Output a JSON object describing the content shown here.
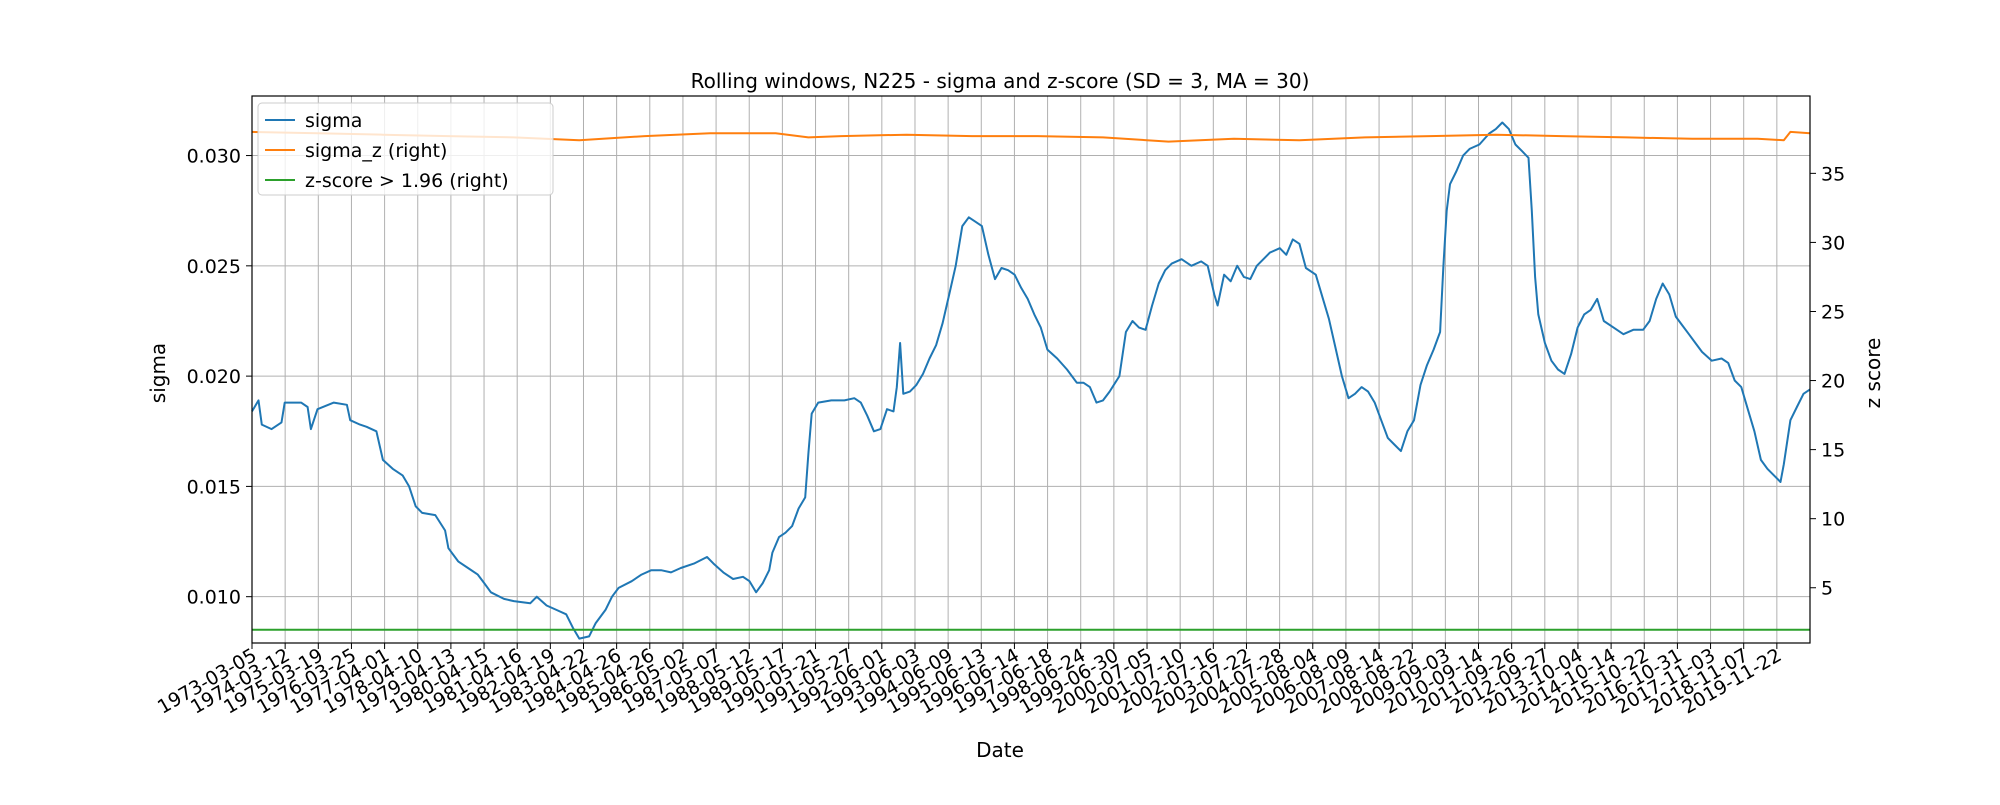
{
  "chart_data": {
    "type": "line",
    "title": "Rolling windows, N225 - sigma and z-score (SD = 3, MA = 30)",
    "xlabel": "Date",
    "ylabel": "sigma",
    "ylabel_right": "z score",
    "ylim": [
      0.0079,
      0.0327
    ],
    "ylim_right": [
      1.0,
      40.6
    ],
    "yticks": [
      "0.010",
      "0.015",
      "0.020",
      "0.025",
      "0.030"
    ],
    "yticks_right": [
      "5",
      "10",
      "15",
      "20",
      "25",
      "30",
      "35"
    ],
    "xticks": [
      "1973-03-05",
      "1974-03-12",
      "1975-03-19",
      "1976-03-25",
      "1977-04-01",
      "1978-04-10",
      "1979-04-13",
      "1980-04-15",
      "1981-04-16",
      "1982-04-19",
      "1983-04-22",
      "1984-04-26",
      "1985-04-26",
      "1986-05-02",
      "1987-05-07",
      "1988-05-12",
      "1989-05-17",
      "1990-05-21",
      "1991-05-27",
      "1992-06-01",
      "1993-06-03",
      "1994-06-09",
      "1995-06-13",
      "1996-06-14",
      "1997-06-18",
      "1998-06-24",
      "1999-06-30",
      "2000-07-05",
      "2001-07-10",
      "2002-07-16",
      "2003-07-22",
      "2004-07-28",
      "2005-08-04",
      "2006-08-09",
      "2007-08-14",
      "2008-08-22",
      "2009-09-03",
      "2010-09-14",
      "2011-09-26",
      "2012-09-27",
      "2013-10-04",
      "2014-10-14",
      "2015-10-22",
      "2016-10-31",
      "2017-11-03",
      "2018-11-07",
      "2019-11-22"
    ],
    "x_range": [
      1973.0,
      2020.6
    ],
    "grid": true,
    "legend_position": "top-left",
    "series": [
      {
        "name": "sigma",
        "axis": "left",
        "color": "#1f77b4",
        "points": [
          [
            1973.0,
            0.0184
          ],
          [
            1973.2,
            0.0189
          ],
          [
            1973.3,
            0.0178
          ],
          [
            1973.6,
            0.0176
          ],
          [
            1973.9,
            0.0179
          ],
          [
            1974.0,
            0.0188
          ],
          [
            1974.5,
            0.0188
          ],
          [
            1974.7,
            0.0186
          ],
          [
            1974.8,
            0.0176
          ],
          [
            1975.0,
            0.0185
          ],
          [
            1975.5,
            0.0188
          ],
          [
            1975.9,
            0.0187
          ],
          [
            1976.0,
            0.018
          ],
          [
            1976.3,
            0.0178
          ],
          [
            1976.5,
            0.0177
          ],
          [
            1976.8,
            0.0175
          ],
          [
            1977.0,
            0.0162
          ],
          [
            1977.3,
            0.0158
          ],
          [
            1977.6,
            0.0155
          ],
          [
            1977.8,
            0.015
          ],
          [
            1978.0,
            0.0141
          ],
          [
            1978.2,
            0.0138
          ],
          [
            1978.6,
            0.0137
          ],
          [
            1978.9,
            0.013
          ],
          [
            1979.0,
            0.0122
          ],
          [
            1979.3,
            0.0116
          ],
          [
            1979.6,
            0.0113
          ],
          [
            1979.9,
            0.011
          ],
          [
            1980.1,
            0.0106
          ],
          [
            1980.3,
            0.0102
          ],
          [
            1980.7,
            0.0099
          ],
          [
            1981.0,
            0.0098
          ],
          [
            1981.5,
            0.0097
          ],
          [
            1981.7,
            0.01
          ],
          [
            1982.0,
            0.0096
          ],
          [
            1982.3,
            0.0094
          ],
          [
            1982.6,
            0.0092
          ],
          [
            1982.8,
            0.0086
          ],
          [
            1983.0,
            0.0081
          ],
          [
            1983.3,
            0.0082
          ],
          [
            1983.5,
            0.0088
          ],
          [
            1983.8,
            0.0094
          ],
          [
            1984.0,
            0.01
          ],
          [
            1984.2,
            0.0104
          ],
          [
            1984.6,
            0.0107
          ],
          [
            1984.9,
            0.011
          ],
          [
            1985.2,
            0.0112
          ],
          [
            1985.5,
            0.0112
          ],
          [
            1985.8,
            0.0111
          ],
          [
            1986.1,
            0.0113
          ],
          [
            1986.5,
            0.0115
          ],
          [
            1986.9,
            0.0118
          ],
          [
            1987.1,
            0.0115
          ],
          [
            1987.4,
            0.0111
          ],
          [
            1987.7,
            0.0108
          ],
          [
            1988.0,
            0.0109
          ],
          [
            1988.2,
            0.0107
          ],
          [
            1988.4,
            0.0102
          ],
          [
            1988.6,
            0.0106
          ],
          [
            1988.8,
            0.0112
          ],
          [
            1988.9,
            0.012
          ],
          [
            1989.1,
            0.0127
          ],
          [
            1989.3,
            0.0129
          ],
          [
            1989.5,
            0.0132
          ],
          [
            1989.7,
            0.014
          ],
          [
            1989.9,
            0.0145
          ],
          [
            1990.0,
            0.0165
          ],
          [
            1990.1,
            0.0183
          ],
          [
            1990.3,
            0.0188
          ],
          [
            1990.7,
            0.0189
          ],
          [
            1991.1,
            0.0189
          ],
          [
            1991.4,
            0.019
          ],
          [
            1991.6,
            0.0188
          ],
          [
            1991.8,
            0.0182
          ],
          [
            1992.0,
            0.0175
          ],
          [
            1992.2,
            0.0176
          ],
          [
            1992.4,
            0.0185
          ],
          [
            1992.6,
            0.0184
          ],
          [
            1992.7,
            0.0195
          ],
          [
            1992.8,
            0.0215
          ],
          [
            1992.9,
            0.0192
          ],
          [
            1993.1,
            0.0193
          ],
          [
            1993.3,
            0.0196
          ],
          [
            1993.5,
            0.0201
          ],
          [
            1993.7,
            0.0208
          ],
          [
            1993.9,
            0.0214
          ],
          [
            1994.1,
            0.0224
          ],
          [
            1994.3,
            0.0237
          ],
          [
            1994.5,
            0.025
          ],
          [
            1994.7,
            0.0268
          ],
          [
            1994.9,
            0.0272
          ],
          [
            1995.1,
            0.027
          ],
          [
            1995.3,
            0.0268
          ],
          [
            1995.5,
            0.0255
          ],
          [
            1995.7,
            0.0244
          ],
          [
            1995.9,
            0.0249
          ],
          [
            1996.1,
            0.0248
          ],
          [
            1996.3,
            0.0246
          ],
          [
            1996.5,
            0.024
          ],
          [
            1996.7,
            0.0235
          ],
          [
            1996.9,
            0.0228
          ],
          [
            1997.1,
            0.0222
          ],
          [
            1997.3,
            0.0212
          ],
          [
            1997.6,
            0.0208
          ],
          [
            1997.9,
            0.0203
          ],
          [
            1998.2,
            0.0197
          ],
          [
            1998.4,
            0.0197
          ],
          [
            1998.6,
            0.0195
          ],
          [
            1998.8,
            0.0188
          ],
          [
            1999.0,
            0.0189
          ],
          [
            1999.2,
            0.0193
          ],
          [
            1999.5,
            0.02
          ],
          [
            1999.7,
            0.022
          ],
          [
            1999.9,
            0.0225
          ],
          [
            2000.1,
            0.0222
          ],
          [
            2000.3,
            0.0221
          ],
          [
            2000.5,
            0.0232
          ],
          [
            2000.7,
            0.0242
          ],
          [
            2000.9,
            0.0248
          ],
          [
            2001.1,
            0.0251
          ],
          [
            2001.4,
            0.0253
          ],
          [
            2001.7,
            0.025
          ],
          [
            2002.0,
            0.0252
          ],
          [
            2002.2,
            0.025
          ],
          [
            2002.4,
            0.0237
          ],
          [
            2002.5,
            0.0232
          ],
          [
            2002.7,
            0.0246
          ],
          [
            2002.9,
            0.0243
          ],
          [
            2003.1,
            0.025
          ],
          [
            2003.3,
            0.0245
          ],
          [
            2003.5,
            0.0244
          ],
          [
            2003.7,
            0.025
          ],
          [
            2003.9,
            0.0253
          ],
          [
            2004.1,
            0.0256
          ],
          [
            2004.4,
            0.0258
          ],
          [
            2004.6,
            0.0255
          ],
          [
            2004.8,
            0.0262
          ],
          [
            2005.0,
            0.026
          ],
          [
            2005.2,
            0.0249
          ],
          [
            2005.5,
            0.0246
          ],
          [
            2005.7,
            0.0236
          ],
          [
            2005.9,
            0.0226
          ],
          [
            2006.1,
            0.0213
          ],
          [
            2006.3,
            0.02
          ],
          [
            2006.5,
            0.019
          ],
          [
            2006.7,
            0.0192
          ],
          [
            2006.9,
            0.0195
          ],
          [
            2007.1,
            0.0193
          ],
          [
            2007.3,
            0.0188
          ],
          [
            2007.5,
            0.018
          ],
          [
            2007.7,
            0.0172
          ],
          [
            2007.9,
            0.0169
          ],
          [
            2008.1,
            0.0166
          ],
          [
            2008.3,
            0.0175
          ],
          [
            2008.5,
            0.018
          ],
          [
            2008.7,
            0.0196
          ],
          [
            2008.9,
            0.0205
          ],
          [
            2009.1,
            0.0212
          ],
          [
            2009.3,
            0.022
          ],
          [
            2009.4,
            0.025
          ],
          [
            2009.5,
            0.0275
          ],
          [
            2009.6,
            0.0287
          ],
          [
            2009.8,
            0.0293
          ],
          [
            2010.0,
            0.03
          ],
          [
            2010.2,
            0.0303
          ],
          [
            2010.5,
            0.0305
          ],
          [
            2010.8,
            0.031
          ],
          [
            2011.0,
            0.0312
          ],
          [
            2011.2,
            0.0315
          ],
          [
            2011.4,
            0.0312
          ],
          [
            2011.6,
            0.0305
          ],
          [
            2011.8,
            0.0302
          ],
          [
            2012.0,
            0.0299
          ],
          [
            2012.1,
            0.0275
          ],
          [
            2012.2,
            0.0245
          ],
          [
            2012.3,
            0.0228
          ],
          [
            2012.5,
            0.0215
          ],
          [
            2012.7,
            0.0207
          ],
          [
            2012.9,
            0.0203
          ],
          [
            2013.1,
            0.0201
          ],
          [
            2013.3,
            0.021
          ],
          [
            2013.5,
            0.0222
          ],
          [
            2013.7,
            0.0228
          ],
          [
            2013.9,
            0.023
          ],
          [
            2014.1,
            0.0235
          ],
          [
            2014.3,
            0.0225
          ],
          [
            2014.6,
            0.0222
          ],
          [
            2014.9,
            0.0219
          ],
          [
            2015.2,
            0.0221
          ],
          [
            2015.5,
            0.0221
          ],
          [
            2015.7,
            0.0225
          ],
          [
            2015.9,
            0.0235
          ],
          [
            2016.1,
            0.0242
          ],
          [
            2016.3,
            0.0237
          ],
          [
            2016.5,
            0.0227
          ],
          [
            2016.7,
            0.0223
          ],
          [
            2016.9,
            0.0219
          ],
          [
            2017.1,
            0.0215
          ],
          [
            2017.3,
            0.0211
          ],
          [
            2017.6,
            0.0207
          ],
          [
            2017.9,
            0.0208
          ],
          [
            2018.1,
            0.0206
          ],
          [
            2018.3,
            0.0198
          ],
          [
            2018.5,
            0.0195
          ],
          [
            2018.7,
            0.0185
          ],
          [
            2018.9,
            0.0175
          ],
          [
            2019.1,
            0.0162
          ],
          [
            2019.3,
            0.0158
          ],
          [
            2019.5,
            0.0155
          ],
          [
            2019.7,
            0.0152
          ],
          [
            2019.8,
            0.016
          ],
          [
            2020.0,
            0.018
          ],
          [
            2020.2,
            0.0186
          ],
          [
            2020.4,
            0.0192
          ],
          [
            2020.6,
            0.0194
          ]
        ]
      },
      {
        "name": "sigma_z (right)",
        "axis": "right",
        "color": "#ff7f0e",
        "points": [
          [
            1973.0,
            38.0
          ],
          [
            1975.0,
            37.9
          ],
          [
            1977.0,
            37.8
          ],
          [
            1979.0,
            37.7
          ],
          [
            1981.0,
            37.6
          ],
          [
            1983.0,
            37.4
          ],
          [
            1985.0,
            37.7
          ],
          [
            1987.0,
            37.9
          ],
          [
            1989.0,
            37.9
          ],
          [
            1990.0,
            37.6
          ],
          [
            1991.0,
            37.7
          ],
          [
            1993.0,
            37.8
          ],
          [
            1995.0,
            37.7
          ],
          [
            1997.0,
            37.7
          ],
          [
            1999.0,
            37.6
          ],
          [
            2001.0,
            37.3
          ],
          [
            2003.0,
            37.5
          ],
          [
            2005.0,
            37.4
          ],
          [
            2007.0,
            37.6
          ],
          [
            2009.0,
            37.7
          ],
          [
            2011.0,
            37.8
          ],
          [
            2013.0,
            37.7
          ],
          [
            2015.0,
            37.6
          ],
          [
            2017.0,
            37.5
          ],
          [
            2019.0,
            37.5
          ],
          [
            2019.8,
            37.4
          ],
          [
            2020.0,
            38.0
          ],
          [
            2020.6,
            37.9
          ]
        ]
      },
      {
        "name": "z-score > 1.96 (right)",
        "axis": "right",
        "color": "#2ca02c",
        "points": [
          [
            1973.0,
            1.96
          ],
          [
            2020.6,
            1.96
          ]
        ]
      }
    ]
  }
}
